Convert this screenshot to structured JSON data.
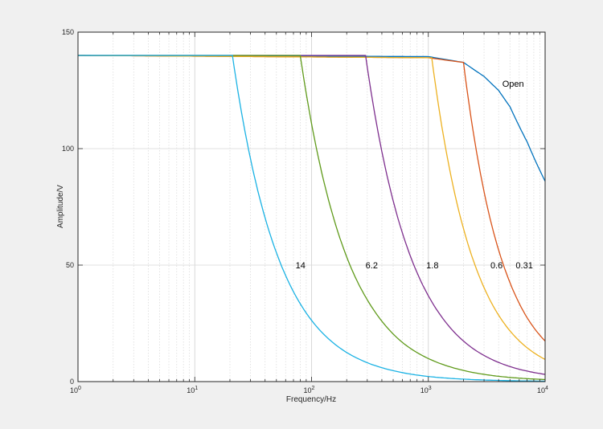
{
  "chart_data": {
    "type": "line",
    "title": "",
    "xlabel": "Frequency/Hz",
    "ylabel": "Amplitude/V",
    "xscale": "log",
    "xlim": [
      1,
      10000
    ],
    "ylim": [
      0,
      150
    ],
    "xticks": [
      {
        "base": "10",
        "exp": "0",
        "value": 1
      },
      {
        "base": "10",
        "exp": "1",
        "value": 10
      },
      {
        "base": "10",
        "exp": "2",
        "value": 100
      },
      {
        "base": "10",
        "exp": "3",
        "value": 1000
      },
      {
        "base": "10",
        "exp": "4",
        "value": 10000
      }
    ],
    "yticks": [
      {
        "label": "0",
        "value": 0
      },
      {
        "label": "50",
        "value": 50
      },
      {
        "label": "100",
        "value": 100
      },
      {
        "label": "150",
        "value": 150
      }
    ],
    "grid": true,
    "series": [
      {
        "name": "Open",
        "color": "#0072bd",
        "label_at": [
          4300,
          128
        ],
        "x": [
          1,
          1000,
          2000,
          3000,
          4000,
          5000,
          7000,
          10000
        ],
        "y": [
          140,
          139.5,
          137,
          131,
          125,
          118,
          103,
          86
        ]
      },
      {
        "name": "0.31",
        "color": "#d95319",
        "label_at": [
          5600,
          50
        ],
        "x": [
          1,
          1000,
          2000,
          2600,
          3500,
          5000,
          7000,
          10000
        ],
        "y": [
          140,
          139,
          137,
          98,
          66.9,
          42.5,
          27.5,
          17.4
        ]
      },
      {
        "name": "0.6",
        "color": "#edb120",
        "label_at": [
          3400,
          50
        ],
        "x": [
          1,
          1070,
          1400,
          1900,
          2700,
          4000,
          6000,
          10000
        ],
        "y": [
          140,
          139,
          100.7,
          69.8,
          45.8,
          28.5,
          17.5,
          9.5
        ]
      },
      {
        "name": "1.8",
        "color": "#7e2f8e",
        "label_at": [
          960,
          50
        ],
        "x": [
          1,
          290,
          400,
          550,
          800,
          1200,
          2000,
          3500,
          6000,
          10000
        ],
        "y": [
          140,
          140,
          98.8,
          70,
          46.8,
          30.3,
          17.4,
          9.5,
          5.3,
          3.1
        ]
      },
      {
        "name": "6.2",
        "color": "#5f9a1a",
        "label_at": [
          290,
          50
        ],
        "x": [
          1,
          80,
          110,
          150,
          220,
          350,
          600,
          1000,
          2000,
          5000,
          10000
        ],
        "y": [
          140,
          140,
          100.2,
          72.4,
          48.4,
          29.9,
          16.8,
          9.9,
          4.8,
          1.8,
          0.88
        ]
      },
      {
        "name": "14",
        "color": "#1ab2e4",
        "label_at": [
          73,
          50
        ],
        "x": [
          1,
          21,
          30,
          40,
          60,
          100,
          200,
          500,
          1000,
          3000,
          10000
        ],
        "y": [
          140,
          140,
          95.6,
          70.3,
          45.5,
          26.3,
          12.5,
          4.7,
          2.2,
          0.69,
          0.19
        ]
      }
    ]
  }
}
